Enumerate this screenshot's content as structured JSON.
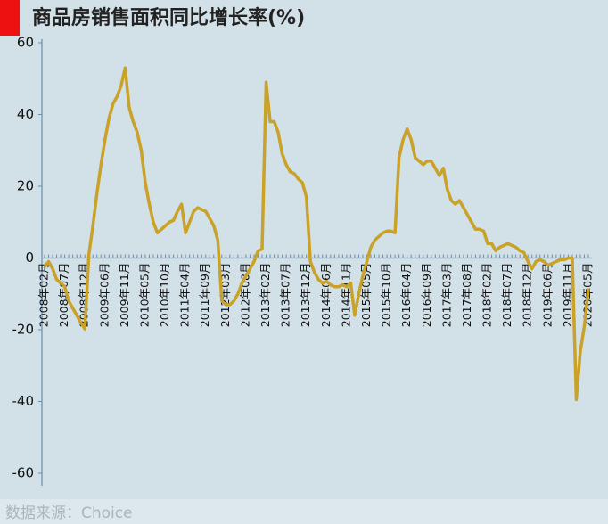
{
  "chart_data": {
    "type": "line",
    "title": "商品房销售面积同比增长率(%)",
    "source": "数据来源：Choice",
    "categories": [
      "2008年02月",
      null,
      null,
      null,
      null,
      "2008年07月",
      null,
      null,
      null,
      null,
      "2008年12月",
      null,
      null,
      null,
      null,
      "2009年06月",
      null,
      null,
      null,
      null,
      "2009年11月",
      null,
      null,
      null,
      null,
      "2010年05月",
      null,
      null,
      null,
      null,
      "2010年10月",
      null,
      null,
      null,
      null,
      "2011年04月",
      null,
      null,
      null,
      null,
      "2011年09月",
      null,
      null,
      null,
      null,
      "2012年03月",
      null,
      null,
      null,
      null,
      "2012年08月",
      null,
      null,
      null,
      null,
      "2013年02月",
      null,
      null,
      null,
      null,
      "2013年07月",
      null,
      null,
      null,
      null,
      "2013年12月",
      null,
      null,
      null,
      null,
      "2014年06月",
      null,
      null,
      null,
      null,
      "2014年11月",
      null,
      null,
      null,
      null,
      "2015年05月",
      null,
      null,
      null,
      null,
      "2015年10月",
      null,
      null,
      null,
      null,
      "2016年04月",
      null,
      null,
      null,
      null,
      "2016年09月",
      null,
      null,
      null,
      null,
      "2017年03月",
      null,
      null,
      null,
      null,
      "2017年08月",
      null,
      null,
      null,
      null,
      "2018年02月",
      null,
      null,
      null,
      null,
      "2018年07月",
      null,
      null,
      null,
      null,
      "2018年12月",
      null,
      null,
      null,
      null,
      "2019年06月",
      null,
      null,
      null,
      null,
      "2019年11月",
      null,
      null,
      null,
      null,
      "2020年05月"
    ],
    "values": [
      -2.5,
      -1,
      -3,
      -6,
      -7,
      -8,
      -12,
      -14,
      -16,
      -18,
      -19.8,
      1,
      9,
      18,
      26,
      33,
      39,
      43,
      45,
      48,
      53,
      42,
      38,
      35,
      30,
      21,
      15,
      10,
      7,
      8,
      9,
      10,
      10.5,
      13,
      15,
      7,
      10,
      13,
      14,
      13.5,
      13,
      11,
      9,
      5,
      -12,
      -13,
      -13,
      -12,
      -10,
      -7,
      -5,
      -3,
      -1,
      2,
      2.5,
      49,
      38,
      38,
      35,
      29,
      26,
      24,
      23.5,
      22,
      21,
      17,
      -1,
      -4,
      -6,
      -7,
      -6.5,
      -7.5,
      -8,
      -8,
      -7.5,
      -8,
      -7,
      -16,
      -10,
      -5,
      -1,
      3,
      5,
      6,
      7,
      7.5,
      7.5,
      7,
      28,
      33,
      36,
      33,
      28,
      27,
      26,
      27,
      27,
      25,
      23,
      25,
      19,
      16,
      15,
      16,
      14,
      12,
      10,
      8,
      8,
      7.5,
      4,
      4,
      2,
      3,
      3.5,
      4,
      3.5,
      3,
      2,
      1.5,
      -1,
      -3,
      -1,
      -0.5,
      -1,
      -2,
      -1.5,
      -1,
      -0.5,
      -0.5,
      0,
      0,
      -39.5,
      -26,
      -19,
      -8.5
    ],
    "color": "#c9a227",
    "ylim": [
      -60,
      60
    ],
    "yticks": [
      -60,
      -40,
      -20,
      0,
      20,
      40,
      60
    ]
  }
}
